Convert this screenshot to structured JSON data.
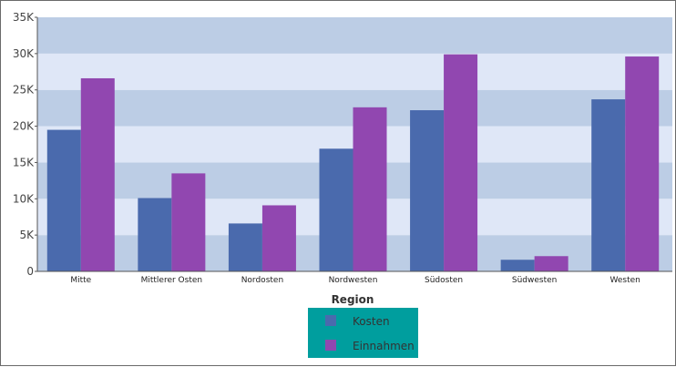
{
  "chart_data": {
    "type": "bar",
    "title": "",
    "xlabel": "Region",
    "ylabel": "",
    "categories": [
      "Mitte",
      "Mittlerer Osten",
      "Nordosten",
      "Nordwesten",
      "Südosten",
      "Südwesten",
      "Westen"
    ],
    "series": [
      {
        "name": "Kosten",
        "color": "#4a6aad",
        "values": [
          19500,
          10100,
          6600,
          16900,
          22200,
          1600,
          23700
        ]
      },
      {
        "name": "Einnahmen",
        "color": "#9147b0",
        "values": [
          26600,
          13500,
          9100,
          22600,
          29900,
          2100,
          29600
        ]
      }
    ],
    "ylim": [
      0,
      35000
    ],
    "yticks": [
      "0",
      "5K",
      "10K",
      "15K",
      "20K",
      "25K",
      "30K",
      "35K"
    ],
    "grid": "alternating horizontal bands",
    "band_colors": [
      "#bccde5",
      "#dfe7f7"
    ],
    "legend": {
      "placement": "bottom-center",
      "background": "#009e9e"
    }
  }
}
